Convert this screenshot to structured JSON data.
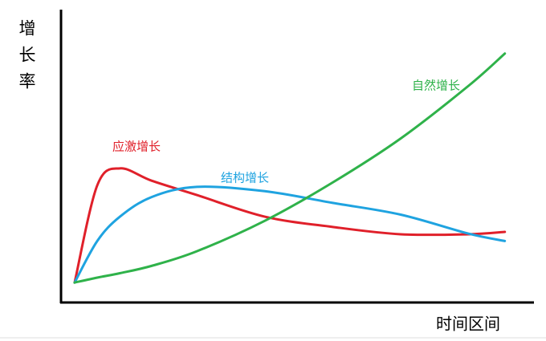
{
  "chart_data": {
    "type": "line",
    "y_label": "增长率",
    "x_label": "时间区间",
    "x": [
      3,
      8,
      13,
      20,
      30,
      45,
      60,
      75,
      90,
      98
    ],
    "xlim": [
      0,
      100
    ],
    "ylim": [
      0,
      100
    ],
    "series": [
      {
        "name": "应激增长",
        "color": "#e0202a",
        "values": [
          6.8,
          40,
          45.8,
          41.6,
          36.7,
          29.3,
          25.8,
          23.3,
          23.3,
          24.1
        ]
      },
      {
        "name": "结构增长",
        "color": "#1fa3e0",
        "values": [
          6.8,
          21,
          29.3,
          36,
          39.5,
          38,
          34,
          30,
          23.5,
          21
        ]
      },
      {
        "name": "自然增长",
        "color": "#2fb24a",
        "values": [
          6.8,
          8.5,
          10,
          12.5,
          17.5,
          27.9,
          41,
          56,
          74,
          85
        ]
      }
    ]
  }
}
